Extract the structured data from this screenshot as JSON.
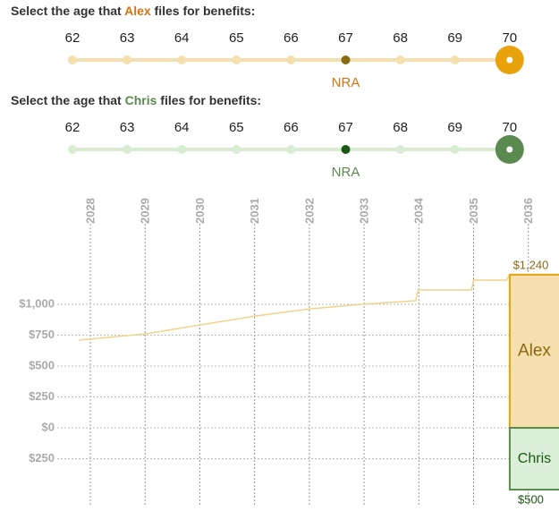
{
  "controls": [
    {
      "prompt_before": "Select the age that",
      "person": "Alex",
      "prompt_after": "files for benefits:",
      "ages": [
        62,
        63,
        64,
        65,
        66,
        67,
        68,
        69,
        70
      ],
      "selected": 70,
      "nra": 67,
      "nra_label": "NRA",
      "color": "#d9730d",
      "track_color": "#f5dfae",
      "knob_color": "#e8a20c",
      "nra_color": "#8a6a10"
    },
    {
      "prompt_before": "Select the age that",
      "person": "Chris",
      "prompt_after": "files for benefits:",
      "ages": [
        62,
        63,
        64,
        65,
        66,
        67,
        68,
        69,
        70
      ],
      "selected": 70,
      "nra": 67,
      "nra_label": "NRA",
      "color": "#5a8a4f",
      "track_color": "#d7ecd3",
      "knob_color": "#5a8a4f",
      "nra_color": "#1a5a10"
    }
  ],
  "chart_data": {
    "type": "line",
    "xlim": [
      2027.33,
      2036.56
    ],
    "xticks": [
      2028,
      2029,
      2030,
      2031,
      2032,
      2033,
      2034,
      2035,
      2036
    ],
    "ylim": [
      -630,
      1652
    ],
    "yticks": [
      {
        "value": -250,
        "label": "$250"
      },
      {
        "value": 0,
        "label": "$0"
      },
      {
        "value": 250,
        "label": "$250"
      },
      {
        "value": 500,
        "label": "$500"
      },
      {
        "value": 750,
        "label": "$750"
      },
      {
        "value": 1000,
        "label": "$1,000"
      }
    ],
    "grid": true,
    "line": {
      "color": "#f0d48a",
      "x": [
        2027.79,
        2029.0,
        2030.01,
        2031.02,
        2032.02,
        2032.96,
        2033.94,
        2033.99,
        2034.96,
        2035.0,
        2035.6,
        2035.66
      ],
      "values": [
        710,
        760,
        833,
        906,
        964,
        1000,
        1029,
        1116,
        1116,
        1196,
        1196,
        1240
      ]
    },
    "bars": [
      {
        "name": "Alex",
        "value": 1240,
        "value_label": "$1,240",
        "color": "#f5dfae",
        "stroke": "#e8a20c",
        "text_color": "#8a6a10"
      },
      {
        "name": "Chris",
        "value": -500,
        "value_label": "$500",
        "color": "#dcefd9",
        "stroke": "#5a8a4f",
        "text_color": "#1a5a10"
      }
    ]
  }
}
